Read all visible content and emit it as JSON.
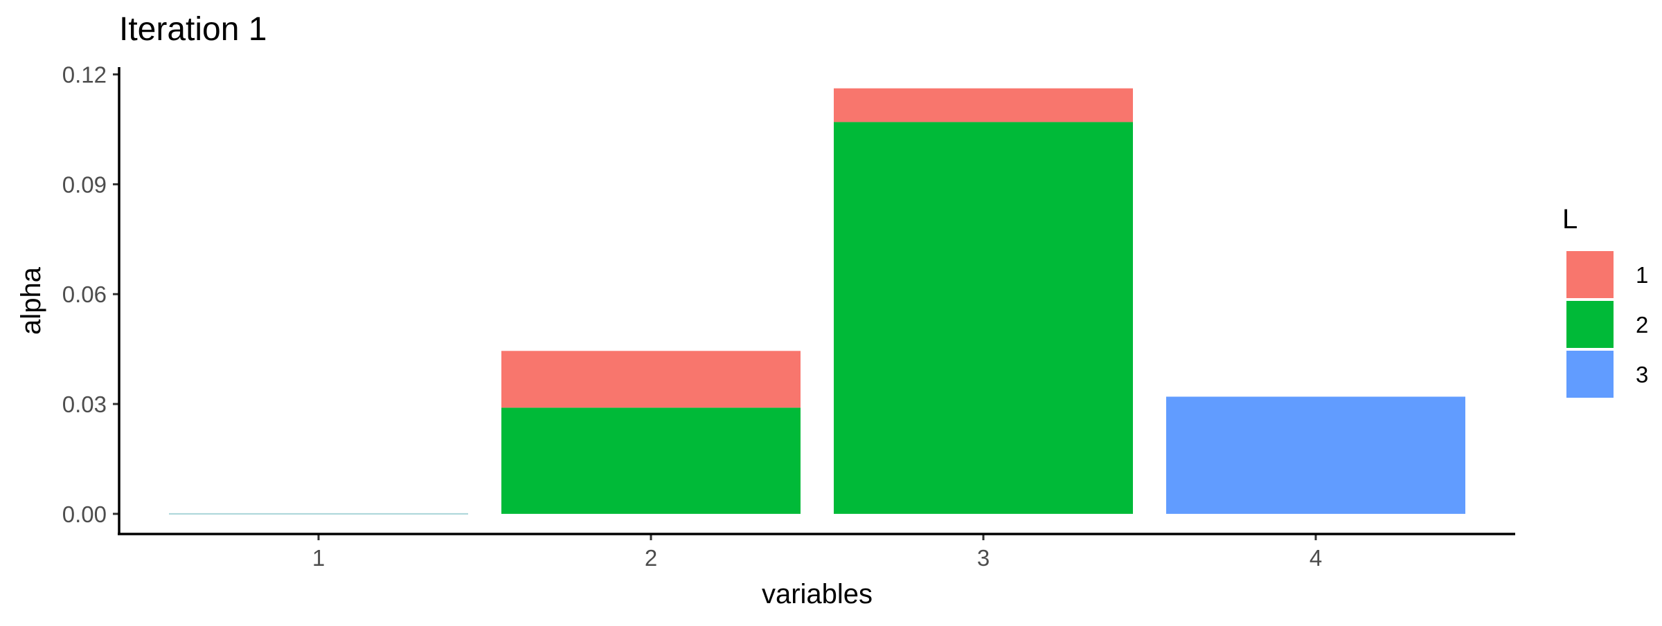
{
  "chart_data": {
    "type": "bar",
    "stacked": true,
    "title": "Iteration 1",
    "xlabel": "variables",
    "ylabel": "alpha",
    "categories": [
      "1",
      "2",
      "3",
      "4"
    ],
    "ylim": [
      -0.0055,
      0.122
    ],
    "yticks": [
      0.0,
      0.03,
      0.06,
      0.09,
      0.12
    ],
    "ytick_labels": [
      "0.00",
      "0.03",
      "0.06",
      "0.09",
      "0.12"
    ],
    "grid": false,
    "legend": {
      "title": "L",
      "position": "right"
    },
    "series": [
      {
        "name": "1",
        "color": "#F8766D",
        "values": [
          0.0,
          0.0155,
          0.0092,
          0.0
        ]
      },
      {
        "name": "2",
        "color": "#00BA38",
        "values": [
          0.0,
          0.029,
          0.107,
          0.0
        ]
      },
      {
        "name": "3",
        "color": "#619CFF",
        "values": [
          0.0,
          0.0,
          0.0,
          0.032
        ]
      }
    ],
    "stack_order_bottom_to_top": [
      "3",
      "2",
      "1"
    ]
  }
}
